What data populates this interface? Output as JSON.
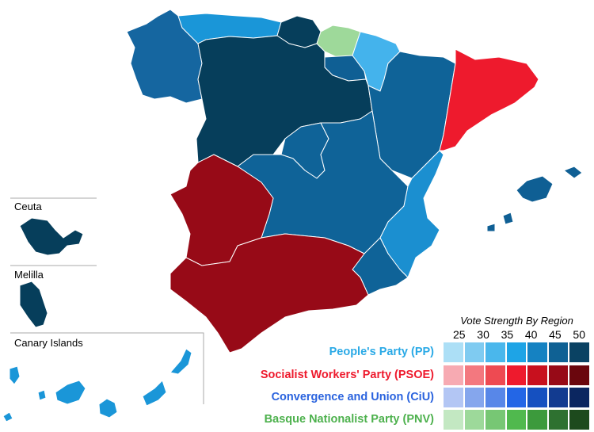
{
  "legend": {
    "title": "Vote Strength By Region",
    "ticks": [
      "25",
      "30",
      "35",
      "40",
      "45",
      "50"
    ],
    "parties": [
      {
        "name": "People's Party (PP)",
        "color": "#29a9e6",
        "scale": [
          "#acdff6",
          "#7fcbf1",
          "#4ab7ec",
          "#1ea4e6",
          "#1582c2",
          "#0f6194",
          "#0a4263"
        ]
      },
      {
        "name": "Socialist Workers' Party (PSOE)",
        "color": "#ee1a2d",
        "scale": [
          "#f7aab2",
          "#f3787f",
          "#ee4a52",
          "#ee1a2d",
          "#c8101e",
          "#970a17",
          "#6a060d"
        ]
      },
      {
        "name": "Convergence and Union (CiU)",
        "color": "#2a63de",
        "scale": [
          "#b3c6f4",
          "#85a6ed",
          "#5887e8",
          "#2366e6",
          "#1550c0",
          "#123b90",
          "#0b2660"
        ]
      },
      {
        "name": "Basque Nationalist Party (PNV)",
        "color": "#4db14d",
        "scale": [
          "#c3e8c2",
          "#9dd99a",
          "#77c774",
          "#50b94e",
          "#3c9a3c",
          "#2e7130",
          "#1d4a1d"
        ]
      }
    ]
  },
  "insets": {
    "ceuta": "Ceuta",
    "melilla": "Melilla",
    "canary": "Canary Islands"
  },
  "regions": {
    "galicia": "#1566a0",
    "asturias": "#1a96d8",
    "cantabria": "#063e5b",
    "basque": "#9ed99a",
    "navarre": "#44b3ec",
    "rioja": "#0f5f94",
    "castilla_leon": "#063e5b",
    "aragon": "#0f6398",
    "catalonia": "#ee1a2d",
    "madrid": "#0f6398",
    "castilla_la_mancha": "#0f6398",
    "valencia": "#1b8fd0",
    "murcia": "#0f6398",
    "extremadura": "#970a17",
    "andalusia": "#970a17",
    "balearic": "#0f5f94",
    "ceuta": "#063e5b",
    "melilla": "#063e5b",
    "canary": "#1a96d8"
  }
}
